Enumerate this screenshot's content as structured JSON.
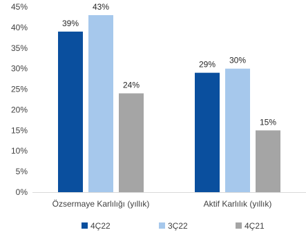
{
  "chart_data": {
    "type": "bar",
    "categories": [
      "Özsermaye Karlılığı (yıllık)",
      "Aktif Karlılık (yıllık)"
    ],
    "series": [
      {
        "name": "4Ç22",
        "values": [
          39,
          29
        ],
        "labels": [
          "39%",
          "29%"
        ],
        "color": "#0A4F9E"
      },
      {
        "name": "3Ç22",
        "values": [
          43,
          30
        ],
        "labels": [
          "43%",
          "30%"
        ],
        "color": "#A6C8EC"
      },
      {
        "name": "4Ç21",
        "values": [
          24,
          15
        ],
        "labels": [
          "24%",
          "15%"
        ],
        "color": "#A5A5A5"
      }
    ],
    "ylim": [
      0,
      45
    ],
    "yticks": [
      0,
      5,
      10,
      15,
      20,
      25,
      30,
      35,
      40,
      45
    ],
    "ytick_labels": [
      "0%",
      "5%",
      "10%",
      "15%",
      "20%",
      "25%",
      "30%",
      "35%",
      "40%",
      "45%"
    ],
    "grid": false,
    "legend": "bottom",
    "title": "",
    "xlabel": "",
    "ylabel": ""
  }
}
